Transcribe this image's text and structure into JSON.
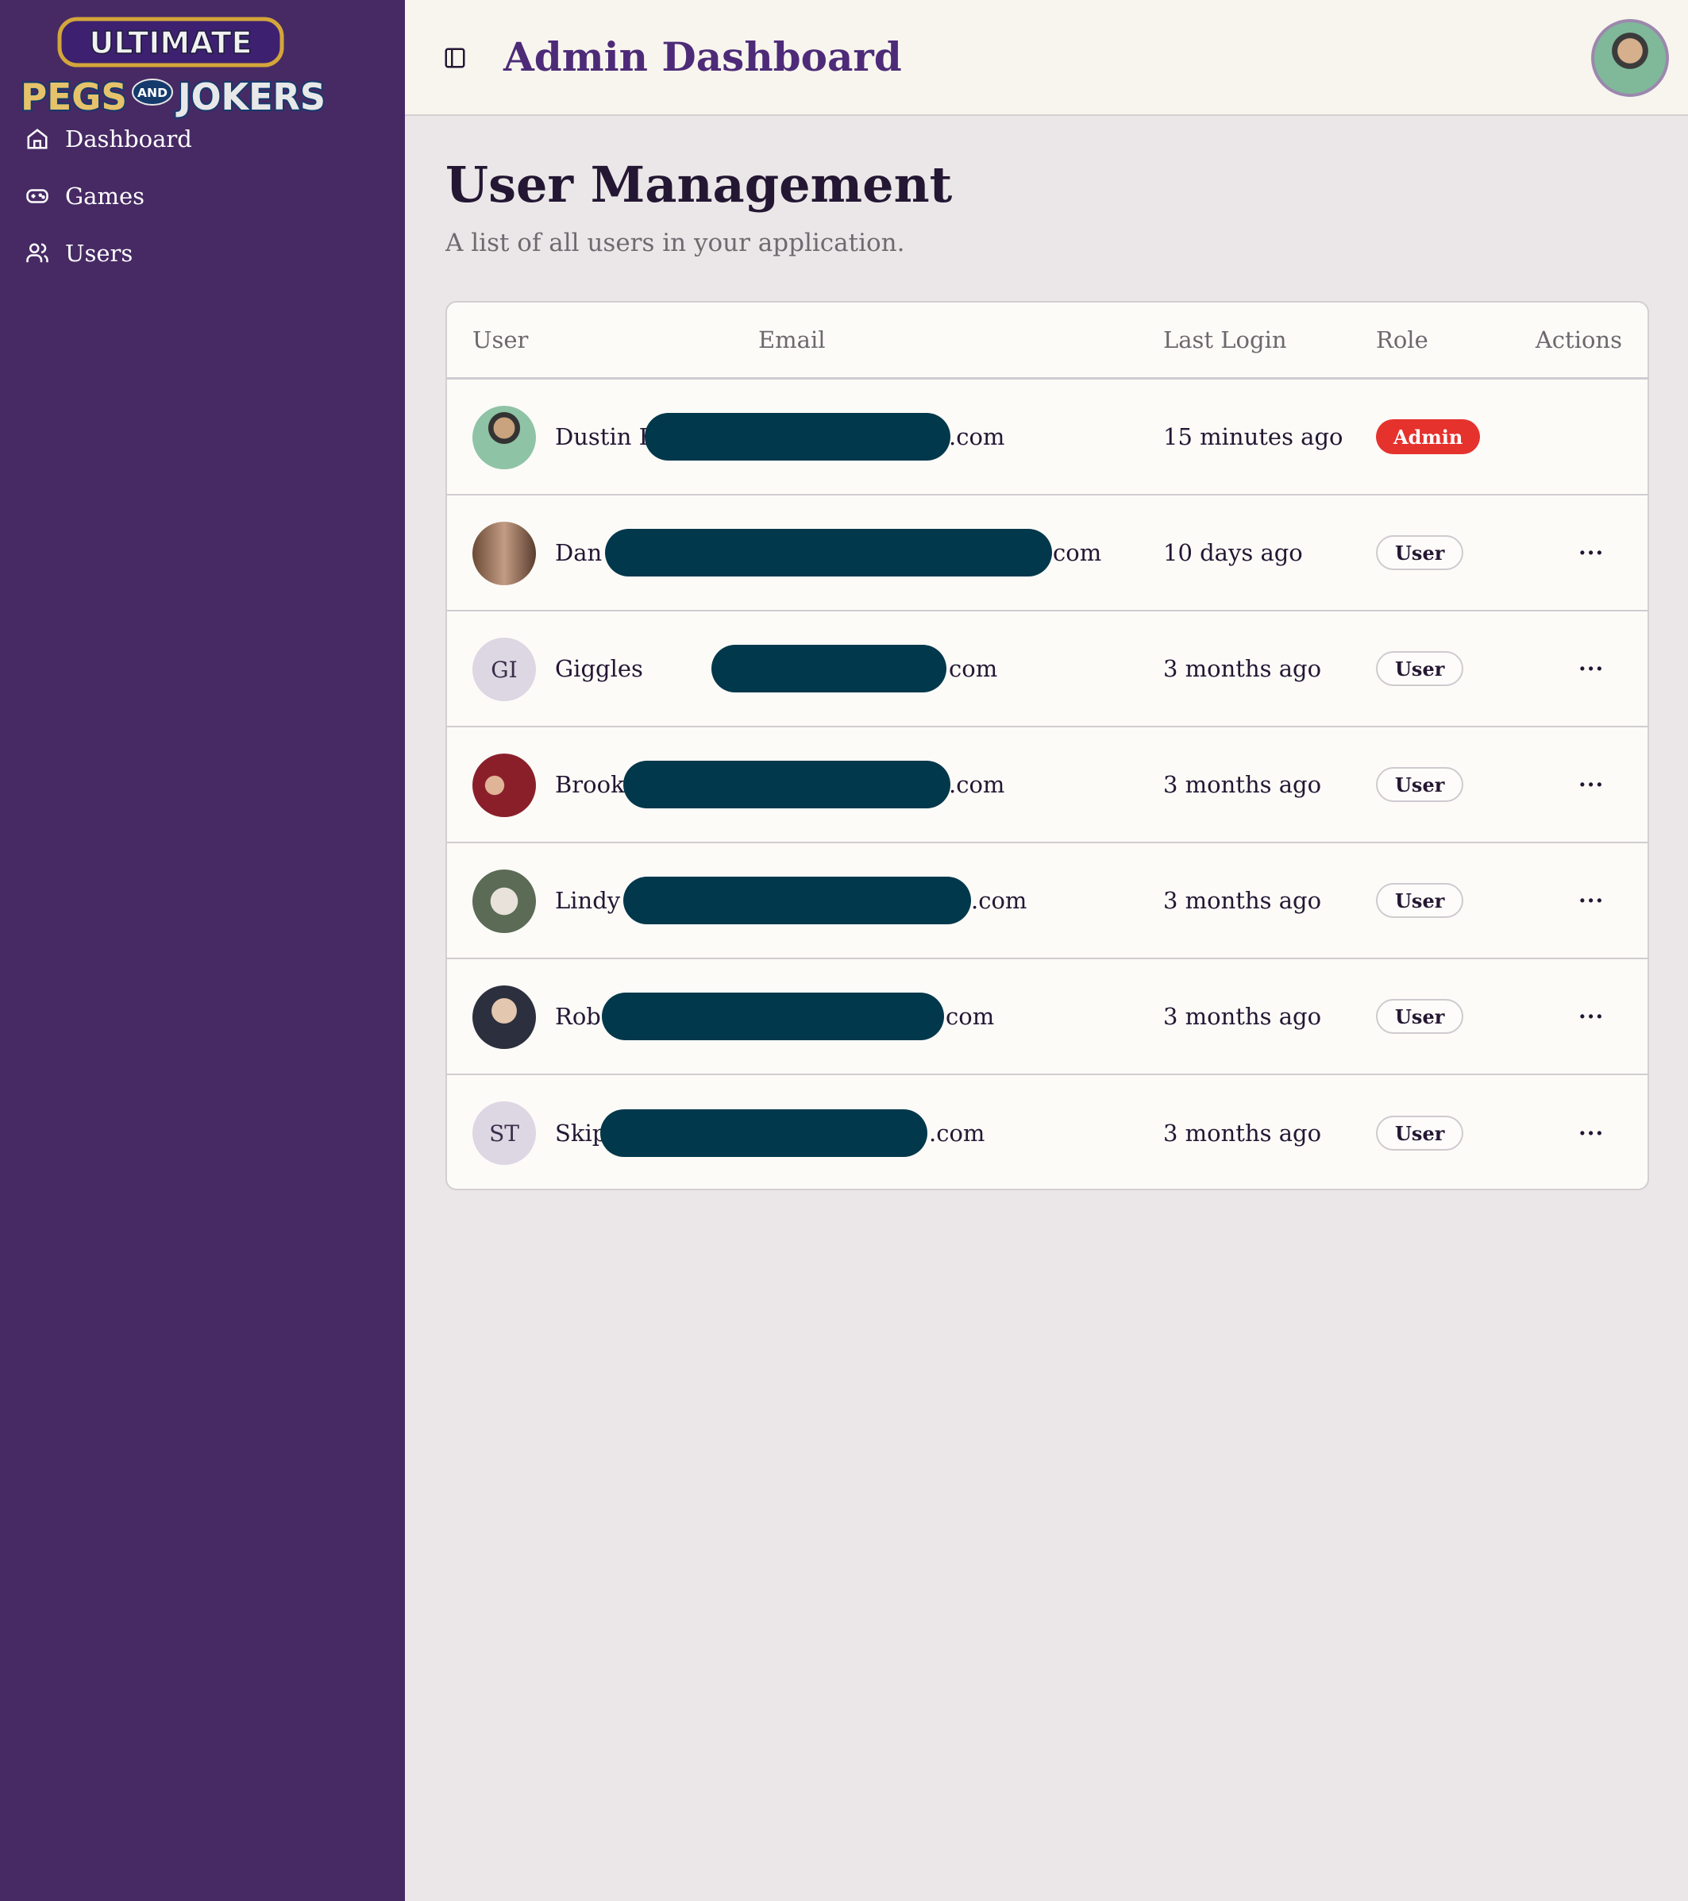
{
  "logo": {
    "line1": "ULTIMATE",
    "line2a": "PEGS",
    "and": "AND",
    "line2b": "JOKERS"
  },
  "sidebar": {
    "items": [
      {
        "label": "Dashboard",
        "icon": "home-icon"
      },
      {
        "label": "Games",
        "icon": "gamepad-icon"
      },
      {
        "label": "Users",
        "icon": "users-icon"
      }
    ]
  },
  "header": {
    "title": "Admin Dashboard"
  },
  "page": {
    "title": "User Management",
    "subtitle": "A list of all users in your application."
  },
  "table": {
    "columns": [
      "User",
      "Email",
      "Last Login",
      "Role",
      "Actions"
    ],
    "rows": [
      {
        "initials": "",
        "photo": true,
        "name": "Dustin B",
        "email_suffix": ".com",
        "last_login": "15 minutes ago",
        "role": "Admin",
        "actions": ""
      },
      {
        "initials": "",
        "photo": true,
        "name": "Dan",
        "email_suffix": "com",
        "last_login": "10 days ago",
        "role": "User",
        "actions": "···"
      },
      {
        "initials": "GI",
        "photo": false,
        "name": "Giggles",
        "email_suffix": "com",
        "last_login": "3 months ago",
        "role": "User",
        "actions": "···"
      },
      {
        "initials": "",
        "photo": true,
        "name": "Brook",
        "email_suffix": ".com",
        "last_login": "3 months ago",
        "role": "User",
        "actions": "···"
      },
      {
        "initials": "",
        "photo": true,
        "name": "Lindy",
        "email_suffix": ".com",
        "last_login": "3 months ago",
        "role": "User",
        "actions": "···"
      },
      {
        "initials": "",
        "photo": true,
        "name": "Rob",
        "email_suffix": "com",
        "last_login": "3 months ago",
        "role": "User",
        "actions": "···"
      },
      {
        "initials": "ST",
        "photo": false,
        "name": "Skip",
        "email_suffix": ".com",
        "last_login": "3 months ago",
        "role": "User",
        "actions": "···"
      }
    ]
  },
  "colors": {
    "sidebar": "#472a64",
    "accent": "#4d2b78",
    "admin": "#e5322d",
    "redaction": "#02384b"
  }
}
